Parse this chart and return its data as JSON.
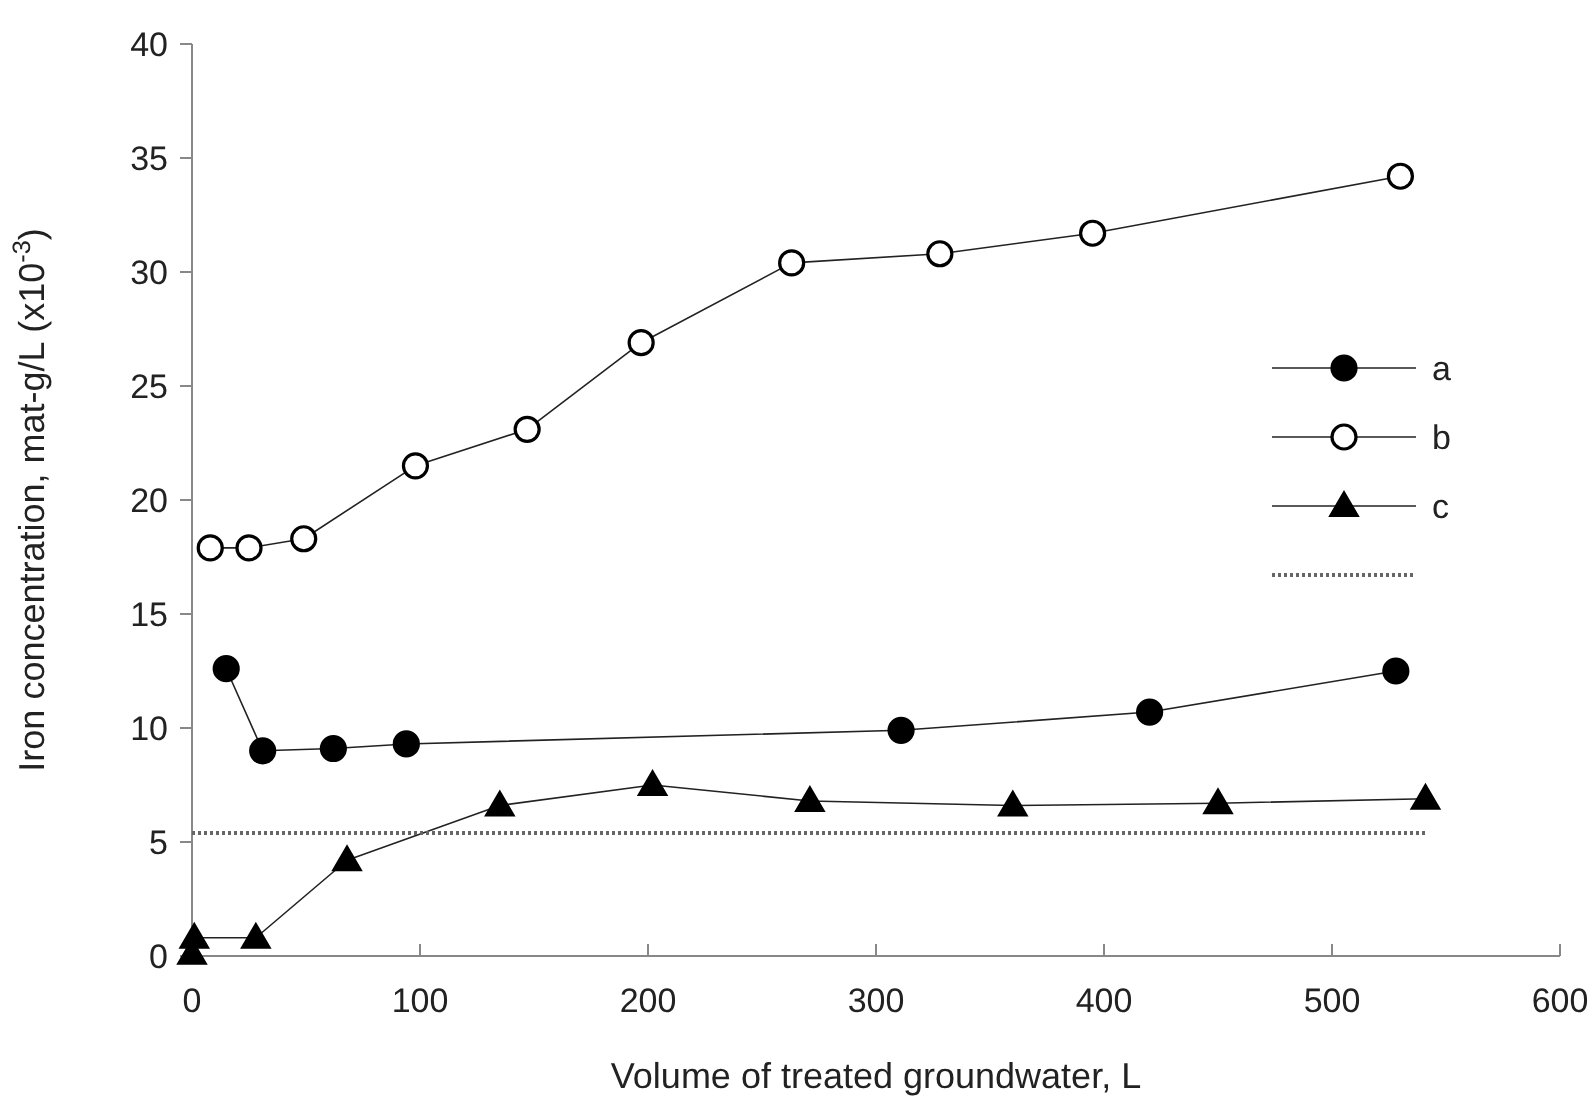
{
  "chart_data": {
    "type": "line",
    "xlabel": "Volume of treated groundwater, L",
    "ylabel": "Iron concentration, mat-g/L (x10$^{-3}$)",
    "xlim": [
      0,
      600
    ],
    "xticks": [
      0,
      100,
      200,
      300,
      400,
      500,
      600
    ],
    "ylim": [
      0,
      40
    ],
    "yticks": [
      0,
      5,
      10,
      15,
      20,
      25,
      30,
      35,
      40
    ],
    "grid": false,
    "legend": "right",
    "line_style": "solid",
    "series": [
      {
        "name": "a",
        "color": "#000000",
        "marker": "circle",
        "x": [
          15,
          31,
          62,
          94,
          311,
          420,
          528
        ],
        "values": [
          12.6,
          9.0,
          9.1,
          9.3,
          9.9,
          10.7,
          12.5
        ]
      },
      {
        "name": "b",
        "color": "#ffffff",
        "marker": "circle",
        "x": [
          8,
          25,
          49,
          98,
          147,
          197,
          263,
          328,
          395,
          530
        ],
        "values": [
          17.9,
          17.9,
          18.3,
          21.5,
          23.1,
          26.9,
          30.4,
          30.8,
          31.7,
          34.2
        ]
      },
      {
        "name": "c",
        "color": "#000000",
        "marker": "triangle",
        "x": [
          0,
          1,
          28,
          68,
          135,
          202,
          271,
          360,
          450,
          541
        ],
        "values": [
          0.1,
          0.8,
          0.8,
          4.2,
          6.6,
          7.5,
          6.8,
          6.6,
          6.7,
          6.9
        ]
      },
      {
        "color": "#666666",
        "marker": "none",
        "line_style": "dotted",
        "x": [
          0,
          541
        ],
        "values": [
          5.4,
          5.4
        ]
      }
    ]
  }
}
